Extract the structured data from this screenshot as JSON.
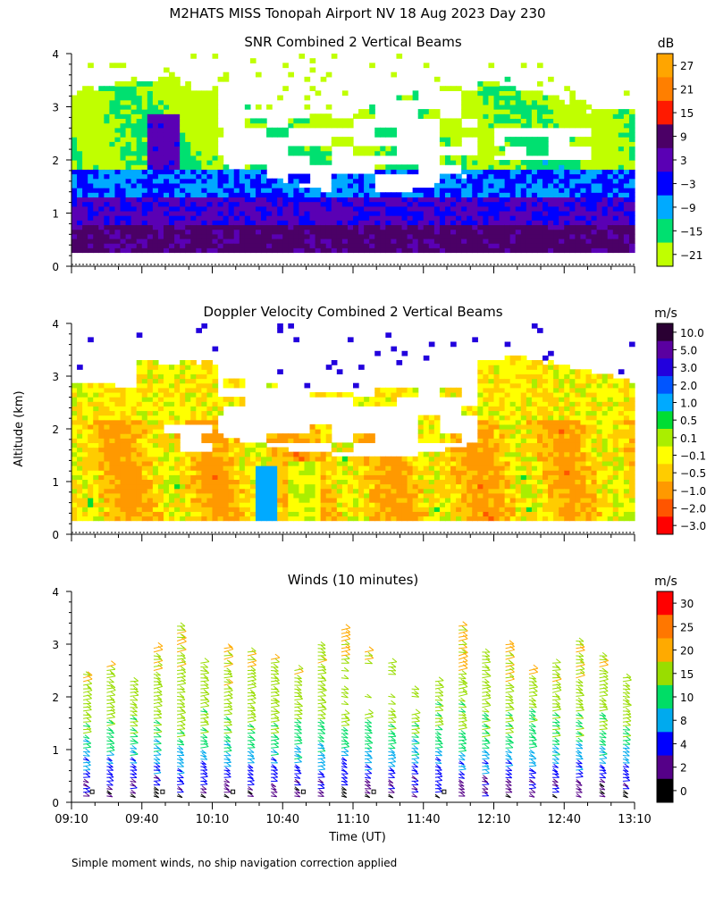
{
  "title": "M2HATS MISS Tonopah Airport NV  18 Aug 2023 Day 230",
  "ylabel": "Altitude (km)",
  "xlabel": "Time (UT)",
  "footnote": "Simple moment winds, no ship navigation correction applied",
  "x_ticks": [
    "09:10",
    "09:40",
    "10:10",
    "10:40",
    "11:10",
    "11:40",
    "12:10",
    "12:40",
    "13:10"
  ],
  "y_ticks": [
    "0",
    "1",
    "2",
    "3",
    "4"
  ],
  "chart_data": [
    {
      "type": "heatmap",
      "title": "SNR Combined 2 Vertical Beams",
      "xlabel": "Time (UT)",
      "ylabel": "Altitude (km)",
      "x_range": [
        "09:10",
        "13:10"
      ],
      "ylim": [
        0,
        4
      ],
      "colorbar_unit": "dB",
      "colorbar_labels": [
        "27",
        "21",
        "15",
        "9",
        "3",
        "−3",
        "−9",
        "−15",
        "−21"
      ],
      "colorbar_colors": [
        "#ffa500",
        "#ff7f00",
        "#ff1a00",
        "#4b0066",
        "#5a00b4",
        "#0000ff",
        "#00aaff",
        "#00e070",
        "#c0ff00"
      ],
      "description_levels": [
        {
          "alt_km": 0.5,
          "snr_db": 9
        },
        {
          "alt_km": 1.2,
          "snr_db": -3
        },
        {
          "alt_km": 2.0,
          "snr_db": -12
        },
        {
          "alt_km": 3.0,
          "snr_db": -18
        }
      ]
    },
    {
      "type": "heatmap",
      "title": "Doppler Velocity Combined 2 Vertical Beams",
      "xlabel": "Time (UT)",
      "ylabel": "Altitude (km)",
      "x_range": [
        "09:10",
        "13:10"
      ],
      "ylim": [
        0,
        4
      ],
      "colorbar_unit": "m/s",
      "colorbar_labels": [
        "10.0",
        "5.0",
        "3.0",
        "2.0",
        "1.0",
        "0.5",
        "0.1",
        "−0.1",
        "−0.5",
        "−1.0",
        "−2.0",
        "−3.0"
      ],
      "colorbar_colors": [
        "#2a0033",
        "#5a00a0",
        "#2200dd",
        "#0055ff",
        "#00aaff",
        "#00dd33",
        "#aaee00",
        "#ffff00",
        "#ffcc00",
        "#ff9900",
        "#ff5500",
        "#ff0000"
      ],
      "description_levels": [
        {
          "alt_km": 0.5,
          "w_ms": -0.8
        },
        {
          "alt_km": 1.5,
          "w_ms": -0.5
        },
        {
          "alt_km": 3.0,
          "w_ms": 0.1
        }
      ]
    },
    {
      "type": "barbs",
      "title": "Winds (10 minutes)",
      "xlabel": "Time (UT)",
      "ylabel": "Altitude (km)",
      "x_range": [
        "09:10",
        "13:10"
      ],
      "ylim": [
        0,
        4
      ],
      "colorbar_unit": "m/s",
      "colorbar_labels": [
        "30",
        "25",
        "20",
        "15",
        "10",
        "8",
        "4",
        "2",
        "0"
      ],
      "colorbar_colors": [
        "#ff0000",
        "#ff7700",
        "#ffaa00",
        "#99dd00",
        "#00dd66",
        "#00aaee",
        "#0000ff",
        "#550088",
        "#000000"
      ],
      "profile_times": [
        "09:15",
        "09:25",
        "09:35",
        "09:45",
        "09:55",
        "10:05",
        "10:15",
        "10:25",
        "10:35",
        "10:45",
        "10:55",
        "11:05",
        "11:15",
        "11:25",
        "11:35",
        "11:45",
        "11:55",
        "12:05",
        "12:15",
        "12:25",
        "12:35",
        "12:45",
        "12:55",
        "13:05"
      ],
      "speed_profile": [
        {
          "alt_km": 0.2,
          "speed_ms": 2
        },
        {
          "alt_km": 0.5,
          "speed_ms": 4
        },
        {
          "alt_km": 0.9,
          "speed_ms": 8
        },
        {
          "alt_km": 1.3,
          "speed_ms": 12
        },
        {
          "alt_km": 2.0,
          "speed_ms": 15
        },
        {
          "alt_km": 3.0,
          "speed_ms": 18
        }
      ]
    }
  ]
}
